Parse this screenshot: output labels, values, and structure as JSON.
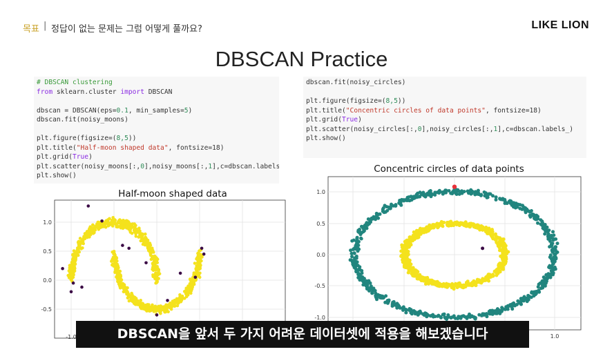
{
  "header": {
    "goal_label": "목표",
    "separator": "|",
    "goal_text": "정답이 없는 문제는 그럼 어떻게 풀까요?",
    "brand": "LIKE LION"
  },
  "slide": {
    "title": "DBSCAN Practice"
  },
  "code_left": {
    "comment": "# DBSCAN clustering",
    "import_from": "from",
    "import_module": " sklearn.cluster ",
    "import_kw": "import",
    "import_name": " DBSCAN",
    "line_dbscan_a": "dbscan = DBSCAN(eps=",
    "eps": "0.1",
    "line_dbscan_b": ", min_samples=",
    "min_samples": "5",
    "line_dbscan_c": ")",
    "fit": "dbscan.fit(noisy_moons)",
    "fig_a": "plt.figure(figsize=(",
    "fig_nums": "8,5",
    "fig_b": "))",
    "title_a": "plt.title(",
    "title_str": "\"Half-moon shaped data\"",
    "title_b": ", fontsize=18)",
    "grid_a": "plt.grid(",
    "grid_true": "True",
    "grid_b": ")",
    "scatter_a": "plt.scatter(noisy_moons[:,",
    "scatter_0": "0",
    "scatter_b": "],noisy_moons[:,",
    "scatter_1": "1",
    "scatter_c": "],c=dbscan.labels_)",
    "show": "plt.show()"
  },
  "code_right": {
    "fit": "dbscan.fit(noisy_circles)",
    "fig_a": "plt.figure(figsize=(",
    "fig_nums": "8,5",
    "fig_b": "))",
    "title_a": "plt.title(",
    "title_str": "\"Concentric circles of data points\"",
    "title_b": ", fontsize=18)",
    "grid_a": "plt.grid(",
    "grid_true": "True",
    "grid_b": ")",
    "scatter_a": "plt.scatter(noisy_circles[:,",
    "scatter_0": "0",
    "scatter_b": "],noisy_circles[:,",
    "scatter_1": "1",
    "scatter_c": "],c=dbscan.labels_)",
    "show": "plt.show()"
  },
  "plot_left": {
    "title": "Half-moon shaped data",
    "y_ticks": [
      "1.0",
      "0.5",
      "0.0",
      "-0.5"
    ],
    "x_ticks": [
      "-1.0"
    ],
    "colors": {
      "cluster": "#f4e21d",
      "noise": "#3b0a45"
    }
  },
  "plot_right": {
    "title": "Concentric circles of data points",
    "y_ticks": [
      "1.0",
      "0.5",
      "0.0",
      "-0.5",
      "-1.0"
    ],
    "x_ticks": [
      "1.0"
    ],
    "colors": {
      "outer": "#21857e",
      "inner": "#f4e21d",
      "noise": "#3b0a45",
      "cursor": "#e8323a"
    }
  },
  "subtitle": "DBSCAN을 앞서 두 가지 어려운 데이터셋에 적용을 해보겠습니다"
}
